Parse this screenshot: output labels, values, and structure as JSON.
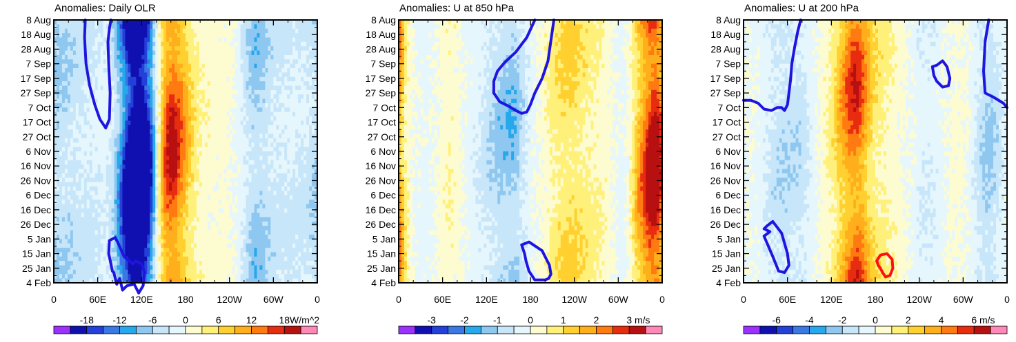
{
  "chart_data": [
    {
      "type": "heatmap",
      "title": "Anomalies: Daily OLR",
      "units": "W/m^2",
      "ylabels": [
        "8 Aug",
        "18 Aug",
        "28 Aug",
        "7 Sep",
        "17 Sep",
        "27 Sep",
        "7 Oct",
        "17 Oct",
        "27 Oct",
        "6 Nov",
        "16 Nov",
        "26 Nov",
        "6 Dec",
        "16 Dec",
        "26 Dec",
        "5 Jan",
        "15 Jan",
        "25 Jan",
        "4 Feb"
      ],
      "xlabels": [
        "0",
        "60E",
        "120E",
        "180",
        "120W",
        "60W",
        "0"
      ],
      "colorbar_labels": [
        "-18",
        "-12",
        "-6",
        "0",
        "6",
        "12",
        "18"
      ],
      "colorbar_colors": [
        "#9b30ff",
        "#1010b0",
        "#2340d8",
        "#3a78e6",
        "#26a8ec",
        "#8ec8f0",
        "#c8e6fa",
        "#e6f6fd",
        "#fdfbd0",
        "#fff07a",
        "#ffd02f",
        "#ffae1c",
        "#ff7a10",
        "#e82c10",
        "#b81010",
        "#ff88b8"
      ],
      "bands": [
        {
          "lon": 10,
          "width": 18,
          "value": -3
        },
        {
          "lon": 40,
          "width": 18,
          "value": -1
        },
        {
          "lon": 60,
          "width": 15,
          "value": -2
        },
        {
          "lon": 78,
          "width": 16,
          "value": 2
        },
        {
          "lon": 92,
          "width": 14,
          "value": -5
        },
        {
          "lon": 108,
          "width": 12,
          "value": -9
        },
        {
          "lon": 120,
          "width": 12,
          "value": -13
        },
        {
          "lon": 136,
          "width": 10,
          "value": -4
        },
        {
          "lon": 156,
          "width": 14,
          "value": 9
        },
        {
          "lon": 175,
          "width": 14,
          "value": 4
        },
        {
          "lon": 215,
          "width": 25,
          "value": 1
        },
        {
          "lon": 275,
          "width": 14,
          "value": -4
        },
        {
          "lon": 310,
          "width": 20,
          "value": -2
        },
        {
          "lon": 345,
          "width": 18,
          "value": -1
        }
      ],
      "contours": [
        {
          "color": "blue",
          "lon": [
            43,
            42,
            44,
            49,
            56,
            63,
            71,
            76,
            77,
            75,
            74,
            76,
            78
          ],
          "day": [
            0,
            12,
            30,
            45,
            58,
            68,
            74,
            68,
            50,
            30,
            15,
            6,
            0
          ]
        },
        {
          "color": "blue",
          "lon": [
            75,
            76,
            84,
            88,
            96,
            108,
            112,
            120,
            124,
            122,
            116,
            110,
            100,
            94,
            90,
            86,
            82,
            80,
            78,
            75
          ],
          "day": [
            160,
            151,
            149,
            153,
            162,
            167,
            165,
            167,
            173,
            182,
            187,
            181,
            182,
            185,
            177,
            181,
            173,
            172,
            167,
            160
          ]
        }
      ]
    },
    {
      "type": "heatmap",
      "title": "Anomalies: U at 850 hPa",
      "units": "m/s",
      "ylabels": [
        "8 Aug",
        "18 Aug",
        "28 Aug",
        "7 Sep",
        "17 Sep",
        "27 Sep",
        "7 Oct",
        "17 Oct",
        "27 Oct",
        "6 Nov",
        "16 Nov",
        "26 Nov",
        "6 Dec",
        "16 Dec",
        "26 Dec",
        "5 Jan",
        "15 Jan",
        "25 Jan",
        "4 Feb"
      ],
      "xlabels": [
        "0",
        "60E",
        "120E",
        "180",
        "120W",
        "60W",
        "0"
      ],
      "colorbar_labels": [
        "-3",
        "-2",
        "-1",
        "0",
        "1",
        "2",
        "3"
      ],
      "colorbar_colors": [
        "#9b30ff",
        "#1010b0",
        "#2340d8",
        "#3a78e6",
        "#26a8ec",
        "#8ec8f0",
        "#c8e6fa",
        "#e6f6fd",
        "#fdfbd0",
        "#fff07a",
        "#ffd02f",
        "#ffae1c",
        "#ff7a10",
        "#e82c10",
        "#b81010",
        "#ff88b8"
      ],
      "bands": [
        {
          "lon": 8,
          "width": 14,
          "value": 1
        },
        {
          "lon": 35,
          "width": 22,
          "value": -1
        },
        {
          "lon": 70,
          "width": 14,
          "value": 2
        },
        {
          "lon": 100,
          "width": 16,
          "value": -1
        },
        {
          "lon": 140,
          "width": 18,
          "value": -4
        },
        {
          "lon": 160,
          "width": 10,
          "value": -2
        },
        {
          "lon": 185,
          "width": 20,
          "value": -1
        },
        {
          "lon": 230,
          "width": 26,
          "value": 4
        },
        {
          "lon": 280,
          "width": 18,
          "value": 1
        },
        {
          "lon": 308,
          "width": 12,
          "value": -2
        },
        {
          "lon": 335,
          "width": 14,
          "value": 7
        },
        {
          "lon": 352,
          "width": 10,
          "value": 9
        }
      ],
      "contours": [
        {
          "color": "blue",
          "lon": [
            186,
            175,
            160,
            145,
            135,
            130,
            130,
            138,
            150,
            160,
            168,
            175,
            180,
            186,
            196,
            204,
            212
          ],
          "day": [
            0,
            12,
            22,
            29,
            35,
            42,
            50,
            56,
            59,
            62,
            64,
            63,
            58,
            50,
            40,
            28,
            0
          ]
        },
        {
          "color": "blue",
          "lon": [
            168,
            178,
            196,
            206,
            208,
            205,
            200,
            186,
            178,
            174,
            172,
            168
          ],
          "day": [
            154,
            152,
            158,
            168,
            174,
            177,
            178,
            178,
            172,
            165,
            160,
            154
          ]
        }
      ]
    },
    {
      "type": "heatmap",
      "title": "Anomalies: U at 200 hPa",
      "units": "m/s",
      "ylabels": [
        "8 Aug",
        "18 Aug",
        "28 Aug",
        "7 Sep",
        "17 Sep",
        "27 Sep",
        "7 Oct",
        "17 Oct",
        "27 Oct",
        "6 Nov",
        "16 Nov",
        "26 Nov",
        "6 Dec",
        "16 Dec",
        "26 Dec",
        "5 Jan",
        "15 Jan",
        "25 Jan",
        "4 Feb"
      ],
      "xlabels": [
        "0",
        "60E",
        "120E",
        "180",
        "120W",
        "60W",
        "0"
      ],
      "colorbar_labels": [
        "-6",
        "-4",
        "-2",
        "0",
        "2",
        "4",
        "6"
      ],
      "colorbar_colors": [
        "#9b30ff",
        "#1010b0",
        "#2340d8",
        "#3a78e6",
        "#26a8ec",
        "#8ec8f0",
        "#c8e6fa",
        "#e6f6fd",
        "#fdfbd0",
        "#fff07a",
        "#ffd02f",
        "#ffae1c",
        "#ff7a10",
        "#e82c10",
        "#b81010",
        "#ff88b8"
      ],
      "bands": [
        {
          "lon": 15,
          "width": 20,
          "value": 1
        },
        {
          "lon": 45,
          "width": 22,
          "value": -3
        },
        {
          "lon": 80,
          "width": 16,
          "value": -2
        },
        {
          "lon": 110,
          "width": 16,
          "value": 1
        },
        {
          "lon": 135,
          "width": 12,
          "value": 4
        },
        {
          "lon": 155,
          "width": 12,
          "value": 8
        },
        {
          "lon": 180,
          "width": 16,
          "value": 2
        },
        {
          "lon": 210,
          "width": 24,
          "value": 1
        },
        {
          "lon": 250,
          "width": 20,
          "value": -2
        },
        {
          "lon": 290,
          "width": 16,
          "value": 1
        },
        {
          "lon": 335,
          "width": 16,
          "value": -4
        }
      ],
      "contours": [
        {
          "color": "blue",
          "lon": [
            0,
            10,
            20,
            28,
            38,
            46,
            52,
            56,
            60,
            64,
            66,
            70,
            74,
            78
          ],
          "day": [
            55,
            55,
            57,
            61,
            62,
            60,
            60,
            62,
            58,
            42,
            30,
            18,
            8,
            0
          ]
        },
        {
          "color": "blue",
          "lon": [
            264,
            272,
            278,
            282,
            280,
            272,
            264,
            260,
            258,
            264
          ],
          "day": [
            31,
            28,
            32,
            40,
            45,
            46,
            42,
            38,
            32,
            31
          ]
        },
        {
          "color": "blue",
          "lon": [
            335,
            330,
            328,
            330,
            342,
            355,
            360
          ],
          "day": [
            0,
            15,
            35,
            50,
            53,
            57,
            60
          ]
        },
        {
          "color": "blue",
          "lon": [
            36,
            28,
            40,
            48,
            56,
            62,
            60,
            52,
            40,
            32,
            28,
            36
          ],
          "day": [
            145,
            148,
            162,
            172,
            173,
            168,
            160,
            146,
            138,
            141,
            143,
            145
          ]
        },
        {
          "color": "red",
          "lon": [
            182,
            187,
            196,
            203,
            204,
            200,
            194,
            190,
            187,
            184,
            182
          ],
          "day": [
            165,
            161,
            160,
            164,
            170,
            175,
            176,
            173,
            170,
            168,
            165
          ]
        }
      ]
    }
  ]
}
